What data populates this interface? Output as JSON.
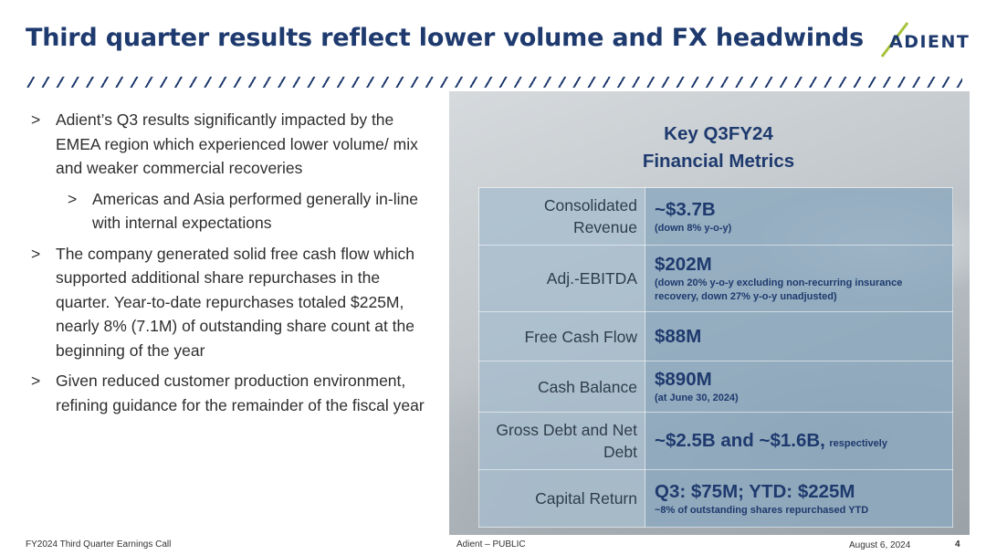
{
  "header": {
    "title": "Third quarter results reflect lower volume and FX headwinds",
    "logo_text": "ADIENT"
  },
  "bullets": {
    "b1": "Adient’s Q3 results significantly impacted by the EMEA region which experienced lower volume/ mix and weaker commercial recoveries",
    "b1_sub": "Americas and Asia performed generally in-line with internal expectations",
    "b2": "The company generated solid free cash flow which supported additional share repurchases in the quarter.  Year-to-date repurchases totaled $225M, nearly 8% (7.1M) of outstanding share count at the beginning of the year",
    "b3": "Given reduced customer production environment, refining guidance for the remainder of the fiscal year",
    "marker": ">"
  },
  "metrics": {
    "heading_line1": "Key Q3FY24",
    "heading_line2": "Financial Metrics",
    "rows": [
      {
        "label": "Consolidated Revenue",
        "value": "~$3.7B",
        "note": "(down 8% y-o-y)"
      },
      {
        "label": "Adj.-EBITDA",
        "value": "$202M",
        "note": "(down 20% y-o-y excluding non-recurring insurance recovery, down 27% y-o-y unadjusted)"
      },
      {
        "label": "Free Cash Flow",
        "value": "$88M",
        "note": ""
      },
      {
        "label": "Cash Balance",
        "value": "$890M",
        "note": "(at June 30, 2024)"
      },
      {
        "label": "Gross Debt and Net Debt",
        "value": "~$2.5B and ~$1.6B,",
        "note": "respectively"
      },
      {
        "label": "Capital Return",
        "value": "Q3: $75M; YTD: $225M",
        "note": "~8% of outstanding shares repurchased YTD"
      }
    ]
  },
  "footer": {
    "left": "FY2024 Third Quarter Earnings Call",
    "classification": "Adient – PUBLIC",
    "date": "August 6, 2024",
    "page": "4"
  },
  "colors": {
    "brand_navy": "#1e3a6e",
    "brand_green": "#a6c23a"
  }
}
